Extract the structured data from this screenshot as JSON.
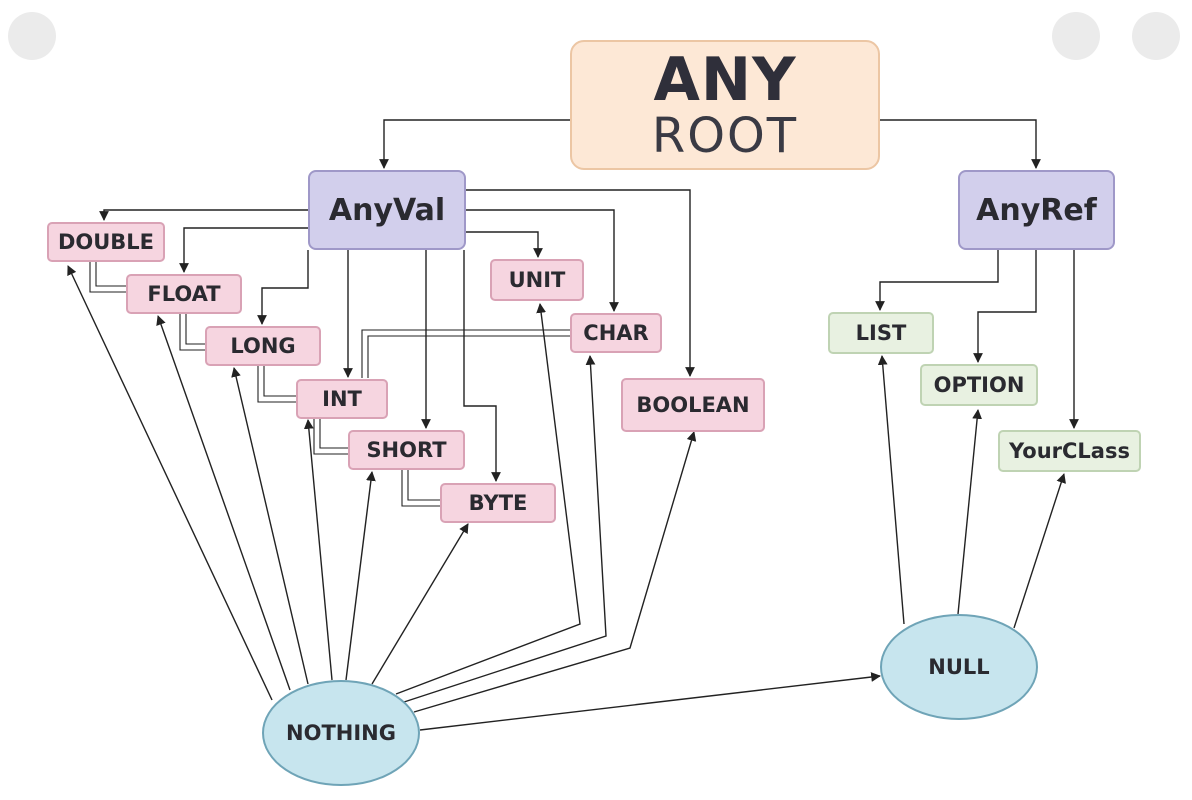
{
  "diagram": {
    "root": {
      "title": "ANY",
      "subtitle": "ROOT"
    },
    "nodes": {
      "anyval": "AnyVal",
      "anyref": "AnyRef",
      "double": "DOUBLE",
      "float": "FLOAT",
      "long": "LONG",
      "int": "INT",
      "short": "SHORT",
      "byte": "BYTE",
      "unit": "UNIT",
      "char": "CHAR",
      "boolean": "BOOLEAN",
      "list": "LIST",
      "option": "OPTION",
      "yourclass": "YourCLass",
      "null": "NULL",
      "nothing": "NOTHING"
    },
    "colors": {
      "value_type": "#f6d5e0",
      "ref_type": "#e8f1e1",
      "category": "#d2cfec",
      "bottom_type": "#c7e5ee",
      "root": "#fde8d6",
      "edge": "#222222"
    }
  }
}
